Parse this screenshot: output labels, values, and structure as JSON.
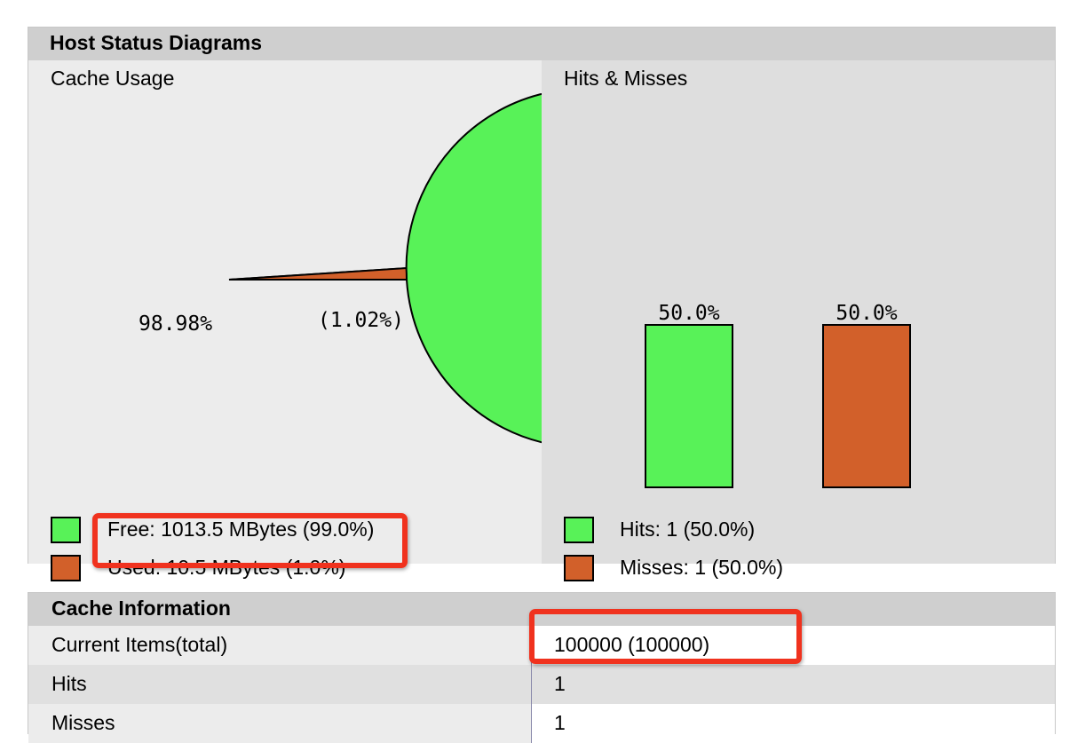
{
  "host_status": {
    "title": "Host Status Diagrams",
    "cache_usage": {
      "title": "Cache Usage",
      "legend": [
        {
          "label": "Free: 1013.5 MBytes (99.0%)",
          "color": "#58f258"
        },
        {
          "label": "Used: 10.5 MBytes (1.0%)",
          "color": "#d2602a"
        }
      ]
    },
    "hits_misses": {
      "title": "Hits & Misses",
      "legend": [
        {
          "label": "Hits: 1 (50.0%)",
          "color": "#58f258"
        },
        {
          "label": "Misses: 1 (50.0%)",
          "color": "#d2602a"
        }
      ]
    }
  },
  "chart_data": [
    {
      "type": "pie",
      "title": "Cache Usage",
      "labels": [
        "Free",
        "Used"
      ],
      "values": [
        98.98,
        1.02
      ],
      "slice_labels": [
        "98.98%",
        "(1.02%)"
      ],
      "colors": [
        "#58f258",
        "#d2602a"
      ]
    },
    {
      "type": "bar",
      "title": "Hits & Misses",
      "categories": [
        "Hits",
        "Misses"
      ],
      "values": [
        50.0,
        50.0
      ],
      "value_labels": [
        "50.0%",
        "50.0%"
      ],
      "colors": [
        "#58f258",
        "#d2602a"
      ],
      "ylim": [
        0,
        100
      ]
    }
  ],
  "cache_info": {
    "title": "Cache Information",
    "rows": [
      {
        "label": "Current Items(total)",
        "value": "100000 (100000)"
      },
      {
        "label": "Hits",
        "value": "1"
      },
      {
        "label": "Misses",
        "value": "1"
      }
    ]
  },
  "highlight_color": "#f0321e"
}
